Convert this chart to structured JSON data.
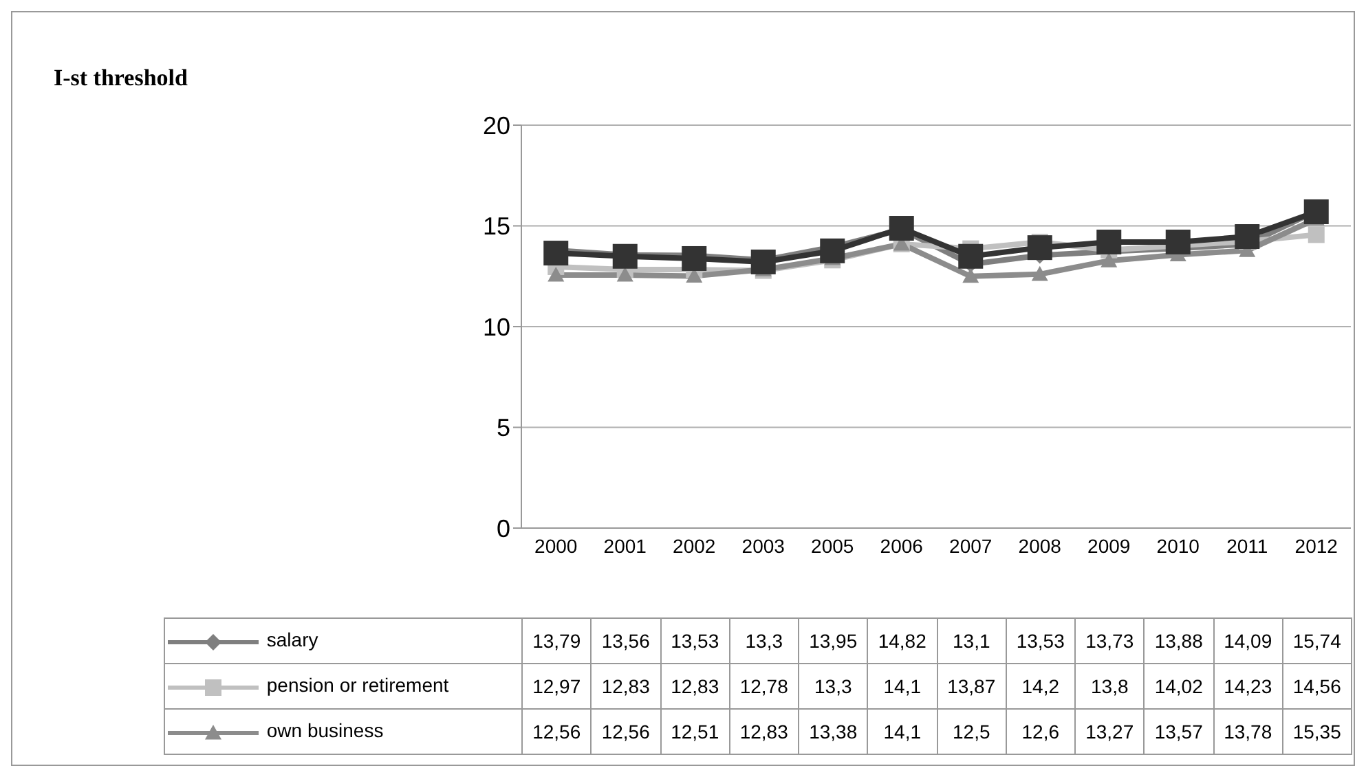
{
  "chart_data": {
    "type": "line",
    "title": "I-st threshold",
    "categories": [
      "2000",
      "2001",
      "2002",
      "2003",
      "2005",
      "2006",
      "2007",
      "2008",
      "2009",
      "2010",
      "2011",
      "2012"
    ],
    "series": [
      {
        "name": "salary",
        "color": "#7f7f7f",
        "marker": "diamond",
        "values": [
          13.79,
          13.56,
          13.53,
          13.3,
          13.95,
          14.82,
          13.1,
          13.53,
          13.73,
          13.88,
          14.09,
          15.74
        ],
        "value_labels": [
          "13,79",
          "13,56",
          "13,53",
          "13,3",
          "13,95",
          "14,82",
          "13,1",
          "13,53",
          "13,73",
          "13,88",
          "14,09",
          "15,74"
        ]
      },
      {
        "name": "pension or retirement",
        "color": "#c0c0c0",
        "marker": "square",
        "values": [
          12.97,
          12.83,
          12.83,
          12.78,
          13.3,
          14.1,
          13.87,
          14.2,
          13.8,
          14.02,
          14.23,
          14.56
        ],
        "value_labels": [
          "12,97",
          "12,83",
          "12,83",
          "12,78",
          "13,3",
          "14,1",
          "13,87",
          "14,2",
          "13,8",
          "14,02",
          "14,23",
          "14,56"
        ]
      },
      {
        "name": "own business",
        "color": "#8c8c8c",
        "marker": "triangle",
        "values": [
          12.56,
          12.56,
          12.51,
          12.83,
          13.38,
          14.1,
          12.5,
          12.6,
          13.27,
          13.57,
          13.78,
          15.35
        ],
        "value_labels": [
          "12,56",
          "12,56",
          "12,51",
          "12,83",
          "13,38",
          "14,1",
          "12,5",
          "12,6",
          "13,27",
          "13,57",
          "13,78",
          "15,35"
        ]
      },
      {
        "color": "#333333",
        "marker": "square",
        "values": [
          13.65,
          13.49,
          13.38,
          13.21,
          13.76,
          14.88,
          13.49,
          13.92,
          14.2,
          14.2,
          14.47,
          15.7
        ]
      }
    ],
    "ylim": [
      0,
      20
    ],
    "yticks": [
      0,
      5,
      10,
      15,
      20
    ],
    "grid": "y",
    "legend": "bottom"
  }
}
